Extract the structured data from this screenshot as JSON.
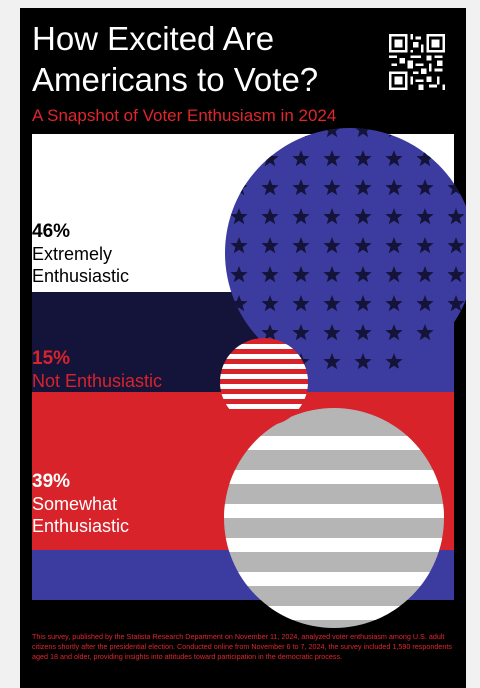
{
  "title_line1": "How Excited Are",
  "title_line2": "Americans to Vote?",
  "subtitle": "A Snapshot of Voter Enthusiasm in 2024",
  "footnote": "This survey, published by the Statista Research Department on November 11, 2024, analyzed voter enthusiasm among U.S. adult citizens shortly after the presidential election. Conducted online from November 6 to 7, 2024, the survey included 1,590 respondents aged 18 and older, providing insights into attitudes toward participation in the democratic process.",
  "colors": {
    "background": "#000000",
    "white": "#ffffff",
    "navy": "#14143a",
    "blue": "#3c3ca0",
    "red": "#d8232a",
    "text_red": "#e0262b",
    "gray": "#b5b5b5",
    "star": "#14143a"
  },
  "chart_data": {
    "type": "pie",
    "title": "How Excited Are Americans to Vote?",
    "subtitle": "A Snapshot of Voter Enthusiasm in 2024",
    "categories": [
      "Extremely Enthusiastic",
      "Not Enthusiastic",
      "Somewhat Enthusiastic"
    ],
    "values": [
      46,
      15,
      39
    ],
    "unit": "%",
    "labels": [
      {
        "pct": "46%",
        "line1": "Extremely",
        "line2": "Enthusiastic",
        "color": "#000000"
      },
      {
        "pct": "15%",
        "line1": "Not Enthusiastic",
        "line2": "",
        "color": "#d8232a"
      },
      {
        "pct": "39%",
        "line1": "Somewhat",
        "line2": "Enthusiastic",
        "color": "#ffffff"
      }
    ]
  }
}
